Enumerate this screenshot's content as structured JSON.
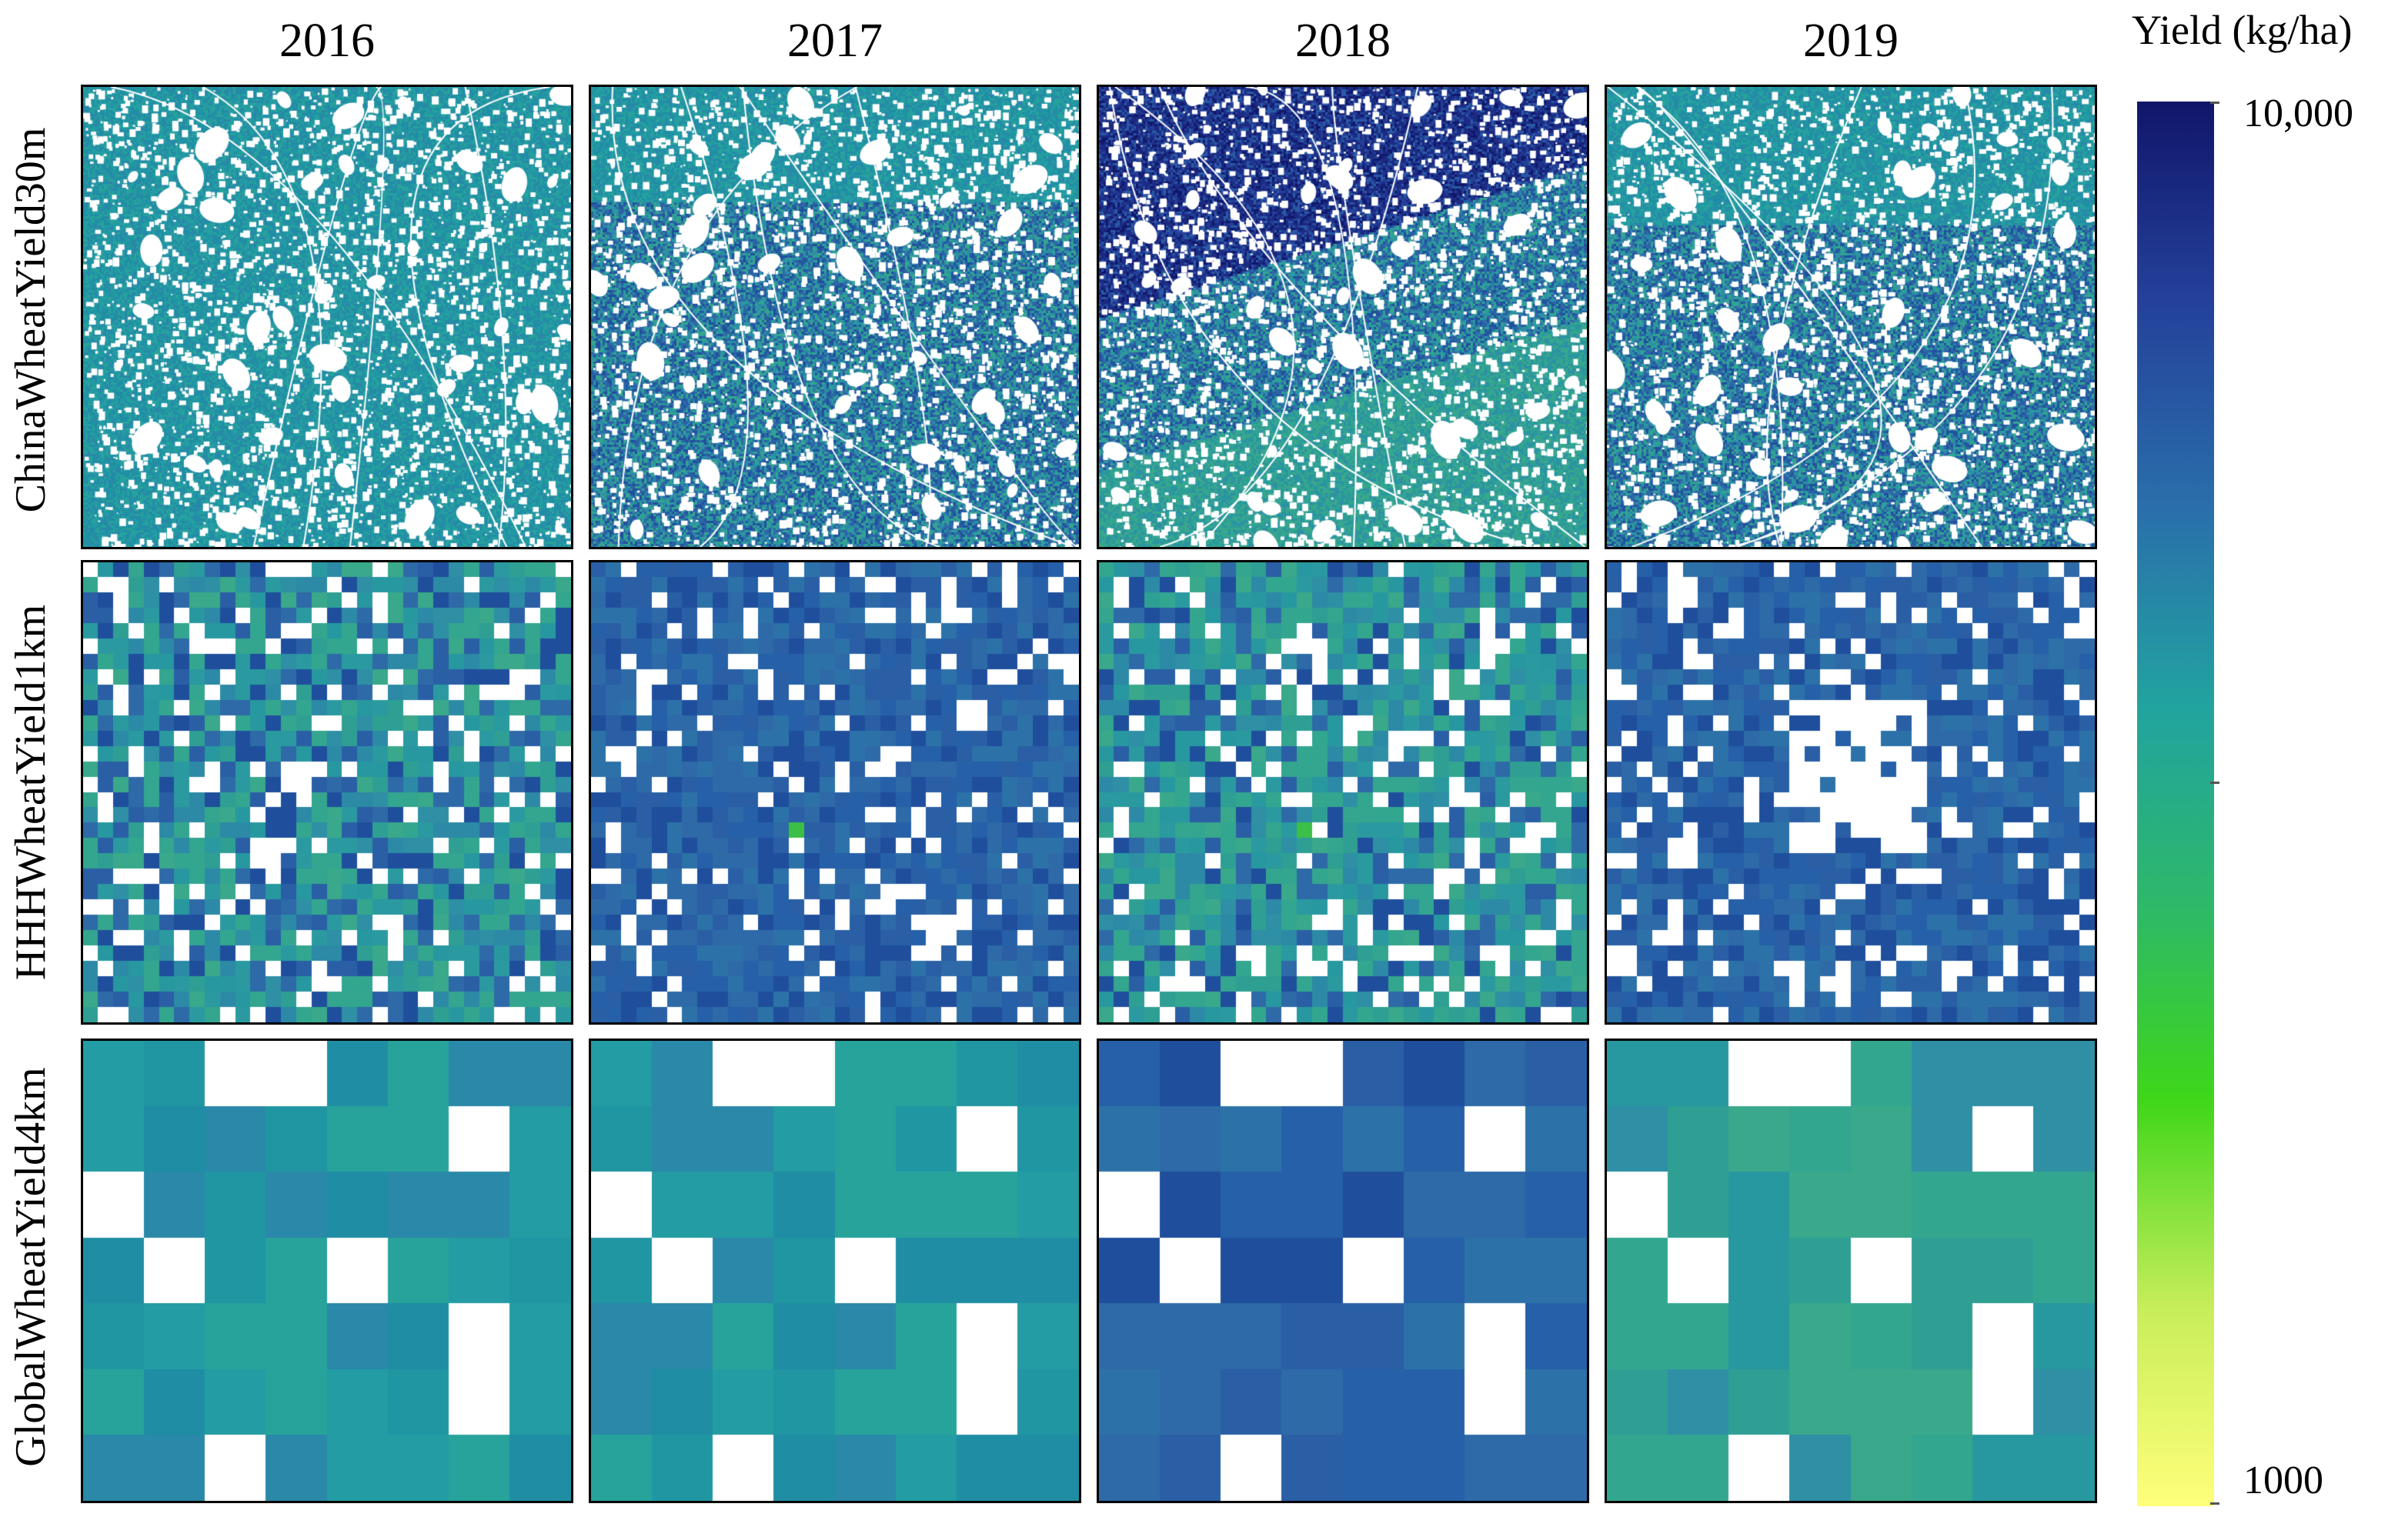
{
  "columns": [
    "2016",
    "2017",
    "2018",
    "2019"
  ],
  "rows": [
    "ChinaWheatYield30m",
    "HHHWheatYield1km",
    "GlobalWheatYield4km"
  ],
  "legend": {
    "title": "Yield (kg/ha)",
    "max_label": "10,000",
    "min_label": "1000",
    "colors": [
      "#ffff7a",
      "#c8ee5a",
      "#3fd61a",
      "#2db86a",
      "#21a3a0",
      "#2a6fab",
      "#24409a",
      "#10166a"
    ]
  },
  "panels": {
    "ChinaWheatYield30m": {
      "2016": "teal",
      "2017": "teal-blue",
      "2018": "blue-north/green-south",
      "2019": "teal-blue"
    },
    "HHHWheatYield1km": {
      "2016": "mixed",
      "2017": "blue",
      "2018": "mixed-green",
      "2019": "blue"
    },
    "GlobalWheatYield4km": {
      "2016": "teal",
      "2017": "teal",
      "2018": "blue",
      "2019": "teal-green"
    }
  }
}
